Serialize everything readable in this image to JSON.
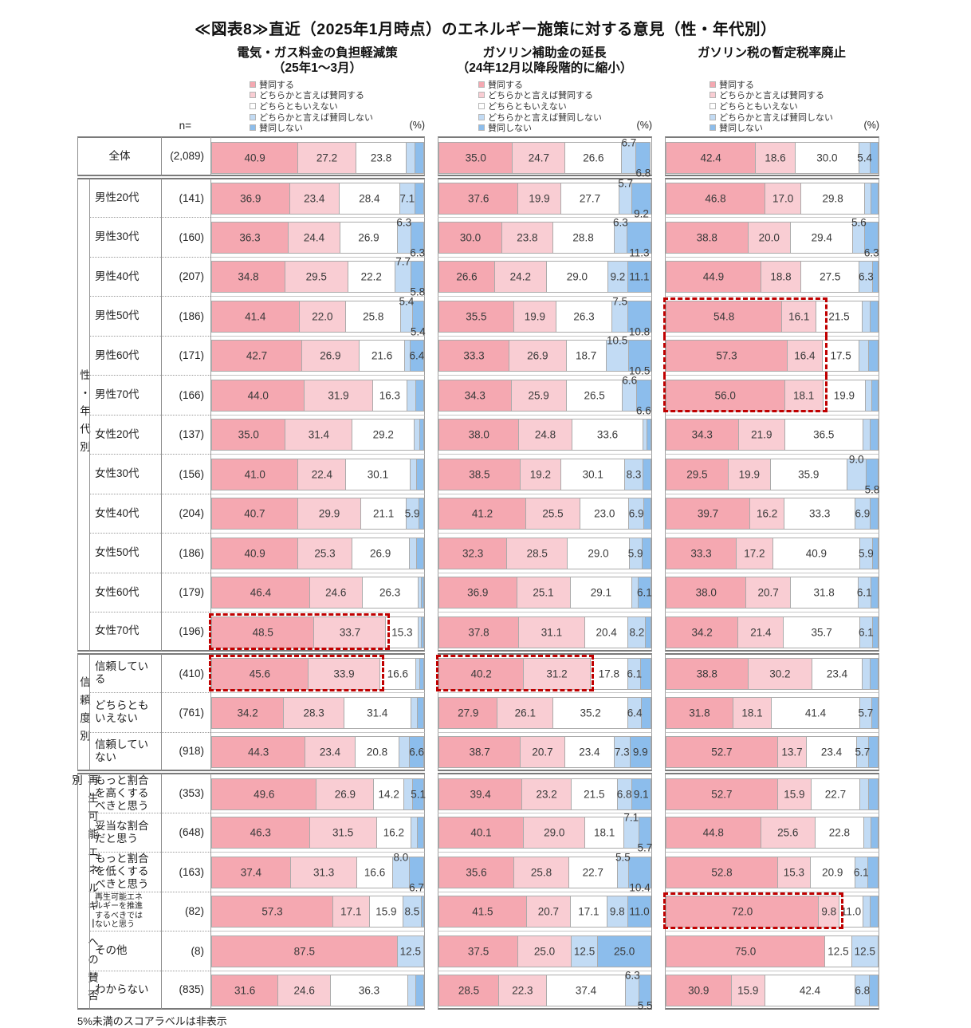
{
  "title": "≪図表8≫直近（2025年1月時点）のエネルギー施策に対する意見（性・年代別）",
  "footnote": "5%未満のスコアラベルは非表示",
  "n_label": "n=",
  "pct_label": "(%)",
  "chart_headers": [
    {
      "title": "電気・ガス料金の負担軽減策",
      "subtitle": "（25年1～3月）"
    },
    {
      "title": "ガソリン補助金の延長",
      "subtitle": "（24年12月以降段階的に縮小）"
    },
    {
      "title": "ガソリン税の暫定税率廃止",
      "subtitle": ""
    }
  ],
  "legend": [
    "賛同する",
    "どちらかと言えば賛同する",
    "どちらともいえない",
    "どちらかと言えば賛同しない",
    "賛同しない"
  ],
  "colors": {
    "agree": "#f5a8b1",
    "somewhat_agree": "#f9cdd3",
    "neutral": "#ffffff",
    "somewhat_disagree": "#c2dbf4",
    "disagree": "#8cbdec",
    "highlight": "#c00000",
    "segment_border": "#ababab"
  },
  "chart_data": {
    "type": "bar",
    "orientation": "horizontal",
    "stacked": true,
    "unit": "%",
    "xlim": [
      0,
      100
    ],
    "label_rule": "5%未満のスコアラベルは非表示",
    "charts": [
      "電気・ガス料金の負担軽減策（25年1～3月）",
      "ガソリン補助金の延長（24年12月以降段階的に縮小）",
      "ガソリン税の暫定税率廃止"
    ],
    "segments": [
      "賛同する",
      "どちらかと言えば賛同する",
      "どちらともいえない",
      "どちらかと言えば賛同しない",
      "賛同しない"
    ],
    "sections": [
      {
        "group": "",
        "rows": [
          {
            "label": "全体",
            "n": "(2,089)",
            "c": [
              {
                "v": [
                  40.9,
                  27.2,
                  23.8,
                  4.1,
                  4.0
                ]
              },
              {
                "v": [
                  35.0,
                  24.7,
                  26.6,
                  6.7,
                  6.8
                ],
                "stag": true
              },
              {
                "v": [
                  42.4,
                  18.6,
                  30.0,
                  5.4,
                  3.6
                ]
              }
            ]
          }
        ]
      },
      {
        "group": "性・年代別",
        "rows": [
          {
            "label": "男性20代",
            "n": "(141)",
            "c": [
              {
                "v": [
                  36.9,
                  23.4,
                  28.4,
                  7.1,
                  4.2
                ]
              },
              {
                "v": [
                  37.6,
                  19.9,
                  27.7,
                  5.7,
                  9.2
                ],
                "stag": true
              },
              {
                "v": [
                  46.8,
                  17.0,
                  29.8,
                  3.2,
                  3.2
                ]
              }
            ]
          },
          {
            "label": "男性30代",
            "n": "(160)",
            "c": [
              {
                "v": [
                  36.3,
                  24.4,
                  26.9,
                  6.3,
                  6.3
                ],
                "stag": true
              },
              {
                "v": [
                  30.0,
                  23.8,
                  28.8,
                  6.3,
                  11.3
                ],
                "stag": true
              },
              {
                "v": [
                  38.8,
                  20.0,
                  29.4,
                  5.6,
                  6.3
                ],
                "stag": true
              }
            ]
          },
          {
            "label": "男性40代",
            "n": "(207)",
            "c": [
              {
                "v": [
                  34.8,
                  29.5,
                  22.2,
                  7.7,
                  5.8
                ],
                "stag": true
              },
              {
                "v": [
                  26.6,
                  24.2,
                  29.0,
                  9.2,
                  11.1
                ]
              },
              {
                "v": [
                  44.9,
                  18.8,
                  27.5,
                  6.3,
                  2.5
                ]
              }
            ]
          },
          {
            "label": "男性50代",
            "n": "(186)",
            "c": [
              {
                "v": [
                  41.4,
                  22.0,
                  25.8,
                  5.4,
                  5.4
                ],
                "stag": true
              },
              {
                "v": [
                  35.5,
                  19.9,
                  26.3,
                  7.5,
                  10.8
                ],
                "stag": true
              },
              {
                "v": [
                  54.8,
                  16.1,
                  21.5,
                  3.8,
                  3.8
                ],
                "box": {
                  "to": 75.2,
                  "part": "top"
                }
              }
            ]
          },
          {
            "label": "男性60代",
            "n": "(171)",
            "c": [
              {
                "v": [
                  42.7,
                  26.9,
                  21.6,
                  2.4,
                  6.4
                ]
              },
              {
                "v": [
                  33.3,
                  26.9,
                  18.7,
                  10.5,
                  10.5
                ],
                "stag": true
              },
              {
                "v": [
                  57.3,
                  16.4,
                  17.5,
                  4.4,
                  4.4
                ],
                "box": {
                  "to": 75.2,
                  "part": "mid"
                }
              }
            ]
          },
          {
            "label": "男性70代",
            "n": "(166)",
            "c": [
              {
                "v": [
                  44.0,
                  31.9,
                  16.3,
                  3.9,
                  3.9
                ]
              },
              {
                "v": [
                  34.3,
                  25.9,
                  26.5,
                  6.6,
                  6.6
                ],
                "stag": true
              },
              {
                "v": [
                  56.0,
                  18.1,
                  19.9,
                  3.0,
                  3.0
                ],
                "box": {
                  "to": 75.2,
                  "part": "bot"
                }
              }
            ]
          },
          {
            "label": "女性20代",
            "n": "(137)",
            "c": [
              {
                "v": [
                  35.0,
                  31.4,
                  29.2,
                  2.4,
                  2.0
                ]
              },
              {
                "v": [
                  38.0,
                  24.8,
                  33.6,
                  1.8,
                  1.8
                ]
              },
              {
                "v": [
                  34.3,
                  21.9,
                  36.5,
                  3.6,
                  3.7
                ]
              }
            ]
          },
          {
            "label": "女性30代",
            "n": "(156)",
            "c": [
              {
                "v": [
                  41.0,
                  22.4,
                  30.1,
                  3.3,
                  3.2
                ]
              },
              {
                "v": [
                  38.5,
                  19.2,
                  30.1,
                  8.3,
                  3.9
                ]
              },
              {
                "v": [
                  29.5,
                  19.9,
                  35.9,
                  9.0,
                  5.8
                ],
                "stag": true
              }
            ]
          },
          {
            "label": "女性40代",
            "n": "(204)",
            "c": [
              {
                "v": [
                  40.7,
                  29.9,
                  21.1,
                  5.9,
                  2.4
                ]
              },
              {
                "v": [
                  41.2,
                  25.5,
                  23.0,
                  6.9,
                  3.4
                ]
              },
              {
                "v": [
                  39.7,
                  16.2,
                  33.3,
                  6.9,
                  3.9
                ]
              }
            ]
          },
          {
            "label": "女性50代",
            "n": "(186)",
            "c": [
              {
                "v": [
                  40.9,
                  25.3,
                  26.9,
                  3.5,
                  3.4
                ]
              },
              {
                "v": [
                  32.3,
                  28.5,
                  29.0,
                  5.9,
                  4.3
                ]
              },
              {
                "v": [
                  33.3,
                  17.2,
                  40.9,
                  5.9,
                  2.7
                ]
              }
            ]
          },
          {
            "label": "女性60代",
            "n": "(179)",
            "c": [
              {
                "v": [
                  46.4,
                  24.6,
                  26.3,
                  1.4,
                  1.3
                ]
              },
              {
                "v": [
                  36.9,
                  25.1,
                  29.1,
                  2.8,
                  6.1
                ]
              },
              {
                "v": [
                  38.0,
                  20.7,
                  31.8,
                  6.1,
                  3.4
                ]
              }
            ]
          },
          {
            "label": "女性70代",
            "n": "(196)",
            "c": [
              {
                "v": [
                  48.5,
                  33.7,
                  15.3,
                  1.3,
                  1.2
                ],
                "box": {
                  "to": 83.2,
                  "part": "solo"
                }
              },
              {
                "v": [
                  37.8,
                  31.1,
                  20.4,
                  8.2,
                  2.5
                ]
              },
              {
                "v": [
                  34.2,
                  21.4,
                  35.7,
                  6.1,
                  2.6
                ]
              }
            ]
          }
        ]
      },
      {
        "group": "信頼度別",
        "rows": [
          {
            "label": "信頼している",
            "n": "(410)",
            "c": [
              {
                "v": [
                  45.6,
                  33.9,
                  16.6,
                  2.0,
                  1.9
                ],
                "box": {
                  "to": 80.5,
                  "part": "solo"
                }
              },
              {
                "v": [
                  40.2,
                  31.2,
                  17.8,
                  6.1,
                  4.7
                ],
                "box": {
                  "to": 72.4,
                  "part": "solo"
                }
              },
              {
                "v": [
                  38.8,
                  30.2,
                  23.4,
                  3.8,
                  3.8
                ]
              }
            ]
          },
          {
            "label": "どちらともいえない",
            "n": "(761)",
            "c": [
              {
                "v": [
                  34.2,
                  28.3,
                  31.4,
                  3.1,
                  3.0
                ]
              },
              {
                "v": [
                  27.9,
                  26.1,
                  35.2,
                  6.4,
                  4.4
                ]
              },
              {
                "v": [
                  31.8,
                  18.1,
                  41.4,
                  5.7,
                  3.0
                ]
              }
            ]
          },
          {
            "label": "信頼していない",
            "n": "(918)",
            "c": [
              {
                "v": [
                  44.3,
                  23.4,
                  20.8,
                  4.9,
                  6.6
                ]
              },
              {
                "v": [
                  38.7,
                  20.7,
                  23.4,
                  7.3,
                  9.9
                ]
              },
              {
                "v": [
                  52.7,
                  13.7,
                  23.4,
                  5.7,
                  4.5
                ]
              }
            ]
          }
        ]
      },
      {
        "group": "再生可能エネルギーへの賛否別",
        "rows": [
          {
            "label": "もっと割合を高くするべきと思う",
            "n": "(353)",
            "c": [
              {
                "v": [
                  49.6,
                  26.9,
                  14.2,
                  4.2,
                  5.1
                ]
              },
              {
                "v": [
                  39.4,
                  23.2,
                  21.5,
                  6.8,
                  9.1
                ]
              },
              {
                "v": [
                  52.7,
                  15.9,
                  22.7,
                  4.3,
                  4.4
                ]
              }
            ]
          },
          {
            "label": "妥当な割合だと思う",
            "n": "(648)",
            "c": [
              {
                "v": [
                  46.3,
                  31.5,
                  16.2,
                  3.0,
                  3.0
                ]
              },
              {
                "v": [
                  40.1,
                  29.0,
                  18.1,
                  7.1,
                  5.7
                ],
                "stag": true
              },
              {
                "v": [
                  44.8,
                  25.6,
                  22.8,
                  3.4,
                  3.4
                ]
              }
            ]
          },
          {
            "label": "もっと割合を低くするべきと思う",
            "n": "(163)",
            "c": [
              {
                "v": [
                  37.4,
                  31.3,
                  16.6,
                  8.0,
                  6.7
                ],
                "stag": true
              },
              {
                "v": [
                  35.6,
                  25.8,
                  22.7,
                  5.5,
                  10.4
                ],
                "stag": true
              },
              {
                "v": [
                  52.8,
                  15.3,
                  20.9,
                  6.1,
                  4.9
                ]
              }
            ]
          },
          {
            "label": "再生可能エネルギーを推進するべきではないと思う",
            "n": "(82)",
            "small": true,
            "c": [
              {
                "v": [
                  57.3,
                  17.1,
                  15.9,
                  8.5,
                  1.2
                ]
              },
              {
                "v": [
                  41.5,
                  20.7,
                  17.1,
                  9.8,
                  11.0
                ]
              },
              {
                "v": [
                  72.0,
                  9.8,
                  11.0,
                  3.6,
                  3.6
                ],
                "box": {
                  "to": 82.8,
                  "part": "solo"
                }
              }
            ]
          },
          {
            "label": "その他",
            "n": "(8)",
            "c": [
              {
                "v": [
                  87.5,
                  0,
                  0,
                  12.5,
                  0
                ]
              },
              {
                "v": [
                  37.5,
                  25.0,
                  0,
                  12.5,
                  25.0
                ]
              },
              {
                "v": [
                  75.0,
                  0,
                  12.5,
                  12.5,
                  0
                ]
              }
            ]
          },
          {
            "label": "わからない",
            "n": "(835)",
            "c": [
              {
                "v": [
                  31.6,
                  24.6,
                  36.3,
                  3.8,
                  3.7
                ]
              },
              {
                "v": [
                  28.5,
                  22.3,
                  37.4,
                  6.3,
                  5.5
                ],
                "stag": true
              },
              {
                "v": [
                  30.9,
                  15.9,
                  42.4,
                  6.8,
                  4.0
                ]
              }
            ]
          }
        ]
      }
    ]
  }
}
